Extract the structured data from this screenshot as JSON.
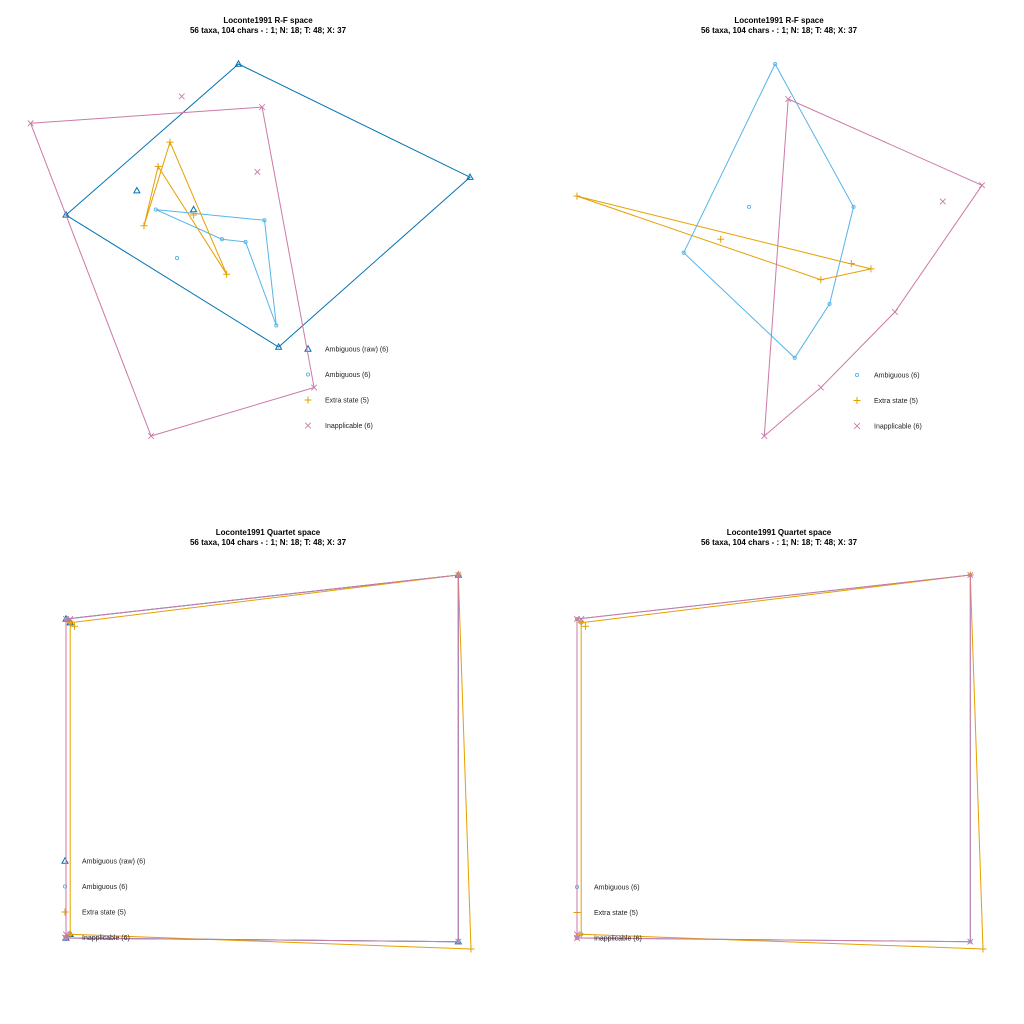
{
  "colors": {
    "Ambiguous (raw)": "#0072b2",
    "Ambiguous": "#56b4e9",
    "Extra state": "#e69f00",
    "Inapplicable": "#cc79a7"
  },
  "symbols": {
    "Ambiguous (raw)": "triangle",
    "Ambiguous": "circle",
    "Extra state": "plus",
    "Inapplicable": "cross"
  },
  "chart_data": [
    {
      "type": "scatter",
      "title": "Loconte1991 R-F space",
      "subtitle": "56 taxa, 104 chars - : 1; N: 18; T: 48; X: 37",
      "legend": "bottom-right",
      "grid": false,
      "axes_shown": false,
      "series": [
        {
          "name": "Ambiguous (raw) (6)",
          "key": "Ambiguous (raw)",
          "points": [
            [
              -0.78,
              0.44
            ],
            [
              0.93,
              0.58
            ],
            [
              -0.05,
              1.0
            ],
            [
              -0.24,
              0.46
            ],
            [
              0.12,
              -0.05
            ],
            [
              -0.48,
              0.53
            ]
          ],
          "hull": [
            [
              -0.78,
              0.44
            ],
            [
              -0.05,
              1.0
            ],
            [
              0.93,
              0.58
            ],
            [
              0.12,
              -0.05
            ]
          ]
        },
        {
          "name": "Ambiguous (6)",
          "key": "Ambiguous",
          "points": [
            [
              -0.31,
              0.28
            ],
            [
              -0.12,
              0.35
            ],
            [
              -0.02,
              0.34
            ],
            [
              -0.4,
              0.46
            ],
            [
              0.06,
              0.42
            ],
            [
              0.11,
              0.03
            ]
          ],
          "hull": [
            [
              -0.4,
              0.46
            ],
            [
              0.06,
              0.42
            ],
            [
              0.11,
              0.03
            ],
            [
              -0.02,
              0.34
            ],
            [
              -0.12,
              0.35
            ]
          ]
        },
        {
          "name": "Extra state (5)",
          "key": "Extra state",
          "points": [
            [
              -0.39,
              0.62
            ],
            [
              -0.34,
              0.71
            ],
            [
              -0.1,
              0.22
            ],
            [
              -0.24,
              0.44
            ],
            [
              -0.45,
              0.4
            ]
          ],
          "hull": [
            [
              -0.45,
              0.4
            ],
            [
              -0.34,
              0.71
            ],
            [
              -0.1,
              0.22
            ],
            [
              -0.39,
              0.62
            ]
          ]
        },
        {
          "name": "Inapplicable (6)",
          "key": "Inapplicable",
          "points": [
            [
              -0.93,
              0.78
            ],
            [
              -0.42,
              -0.38
            ],
            [
              0.05,
              0.84
            ],
            [
              0.27,
              -0.2
            ],
            [
              -0.29,
              0.88
            ],
            [
              0.03,
              0.6
            ]
          ],
          "hull": [
            [
              -0.93,
              0.78
            ],
            [
              0.05,
              0.84
            ],
            [
              0.27,
              -0.2
            ],
            [
              -0.42,
              -0.38
            ]
          ]
        }
      ]
    },
    {
      "type": "scatter",
      "title": "Loconte1991 R-F space",
      "subtitle": "56 taxa, 104 chars - : 1; N: 18; T: 48; X: 37",
      "legend": "bottom-right",
      "grid": false,
      "axes_shown": false,
      "series": [
        {
          "name": "Ambiguous (6)",
          "key": "Ambiguous",
          "points": [
            [
              -0.44,
              0.3
            ],
            [
              -0.02,
              1.0
            ],
            [
              0.34,
              0.47
            ],
            [
              0.23,
              0.11
            ],
            [
              0.07,
              -0.09
            ],
            [
              -0.14,
              0.47
            ]
          ],
          "hull": [
            [
              -0.44,
              0.3
            ],
            [
              -0.02,
              1.0
            ],
            [
              0.34,
              0.47
            ],
            [
              0.23,
              0.11
            ],
            [
              0.07,
              -0.09
            ]
          ]
        },
        {
          "name": "Extra state (5)",
          "key": "Extra state",
          "points": [
            [
              -0.93,
              0.51
            ],
            [
              -0.27,
              0.35
            ],
            [
              0.42,
              0.24
            ],
            [
              0.19,
              0.2
            ],
            [
              0.33,
              0.26
            ]
          ],
          "hull": [
            [
              -0.93,
              0.51
            ],
            [
              0.42,
              0.24
            ],
            [
              0.19,
              0.2
            ]
          ]
        },
        {
          "name": "Inapplicable (6)",
          "key": "Inapplicable",
          "points": [
            [
              0.04,
              0.87
            ],
            [
              0.93,
              0.55
            ],
            [
              -0.07,
              -0.38
            ],
            [
              0.19,
              -0.2
            ],
            [
              0.53,
              0.08
            ],
            [
              0.75,
              0.49
            ]
          ],
          "hull": [
            [
              0.04,
              0.87
            ],
            [
              0.93,
              0.55
            ],
            [
              0.53,
              0.08
            ],
            [
              0.19,
              -0.2
            ],
            [
              -0.07,
              -0.38
            ]
          ]
        }
      ]
    },
    {
      "type": "scatter",
      "title": "Loconte1991 Quartet space",
      "subtitle": "56 taxa, 104 chars - : 1; N: 18; T: 48; X: 37",
      "legend": "bottom-left",
      "grid": false,
      "axes_shown": false,
      "series": [
        {
          "name": "Ambiguous (raw) (6)",
          "key": "Ambiguous (raw)",
          "points": [
            [
              0.0,
              0.88
            ],
            [
              0.0,
              0.01
            ],
            [
              0.93,
              1.0
            ],
            [
              0.93,
              0.0
            ],
            [
              0.01,
              0.87
            ],
            [
              0.01,
              0.02
            ]
          ],
          "hull": [
            [
              0.0,
              0.88
            ],
            [
              0.93,
              1.0
            ],
            [
              0.93,
              0.0
            ],
            [
              0.0,
              0.01
            ]
          ]
        },
        {
          "name": "Ambiguous (6)",
          "key": "Ambiguous",
          "points": [
            [
              0.0,
              0.88
            ],
            [
              0.0,
              0.01
            ],
            [
              0.93,
              1.0
            ],
            [
              0.93,
              0.0
            ],
            [
              0.01,
              0.87
            ],
            [
              0.01,
              0.02
            ]
          ],
          "hull": [
            [
              0.0,
              0.88
            ],
            [
              0.93,
              1.0
            ],
            [
              0.93,
              0.0
            ],
            [
              0.0,
              0.01
            ]
          ]
        },
        {
          "name": "Extra state (5)",
          "key": "Extra state",
          "points": [
            [
              0.01,
              0.87
            ],
            [
              0.01,
              0.02
            ],
            [
              0.93,
              1.0
            ],
            [
              0.96,
              -0.02
            ],
            [
              0.02,
              0.86
            ]
          ],
          "hull": [
            [
              0.01,
              0.87
            ],
            [
              0.93,
              1.0
            ],
            [
              0.96,
              -0.02
            ],
            [
              0.01,
              0.02
            ]
          ]
        },
        {
          "name": "Inapplicable (6)",
          "key": "Inapplicable",
          "points": [
            [
              0.0,
              0.88
            ],
            [
              0.0,
              0.01
            ],
            [
              0.93,
              1.0
            ],
            [
              0.93,
              0.0
            ],
            [
              0.01,
              0.88
            ],
            [
              0.0,
              0.02
            ]
          ],
          "hull": [
            [
              0.0,
              0.88
            ],
            [
              0.93,
              1.0
            ],
            [
              0.93,
              0.0
            ],
            [
              0.0,
              0.01
            ]
          ]
        }
      ]
    },
    {
      "type": "scatter",
      "title": "Loconte1991 Quartet space",
      "subtitle": "56 taxa, 104 chars - : 1; N: 18; T: 48; X: 37",
      "legend": "bottom-left",
      "grid": false,
      "axes_shown": false,
      "series": [
        {
          "name": "Ambiguous (6)",
          "key": "Ambiguous",
          "points": [
            [
              0.0,
              0.88
            ],
            [
              0.0,
              0.01
            ],
            [
              0.93,
              1.0
            ],
            [
              0.93,
              0.0
            ],
            [
              0.01,
              0.87
            ],
            [
              0.01,
              0.02
            ]
          ],
          "hull": [
            [
              0.0,
              0.88
            ],
            [
              0.93,
              1.0
            ],
            [
              0.93,
              0.0
            ],
            [
              0.0,
              0.01
            ]
          ]
        },
        {
          "name": "Extra state (5)",
          "key": "Extra state",
          "points": [
            [
              0.01,
              0.87
            ],
            [
              0.01,
              0.02
            ],
            [
              0.93,
              1.0
            ],
            [
              0.96,
              -0.02
            ],
            [
              0.02,
              0.86
            ]
          ],
          "hull": [
            [
              0.01,
              0.87
            ],
            [
              0.93,
              1.0
            ],
            [
              0.96,
              -0.02
            ],
            [
              0.01,
              0.02
            ]
          ]
        },
        {
          "name": "Inapplicable (6)",
          "key": "Inapplicable",
          "points": [
            [
              0.0,
              0.88
            ],
            [
              0.0,
              0.01
            ],
            [
              0.93,
              1.0
            ],
            [
              0.93,
              0.0
            ],
            [
              0.01,
              0.88
            ],
            [
              0.0,
              0.02
            ]
          ],
          "hull": [
            [
              0.0,
              0.88
            ],
            [
              0.93,
              1.0
            ],
            [
              0.93,
              0.0
            ],
            [
              0.0,
              0.01
            ]
          ]
        }
      ]
    }
  ]
}
